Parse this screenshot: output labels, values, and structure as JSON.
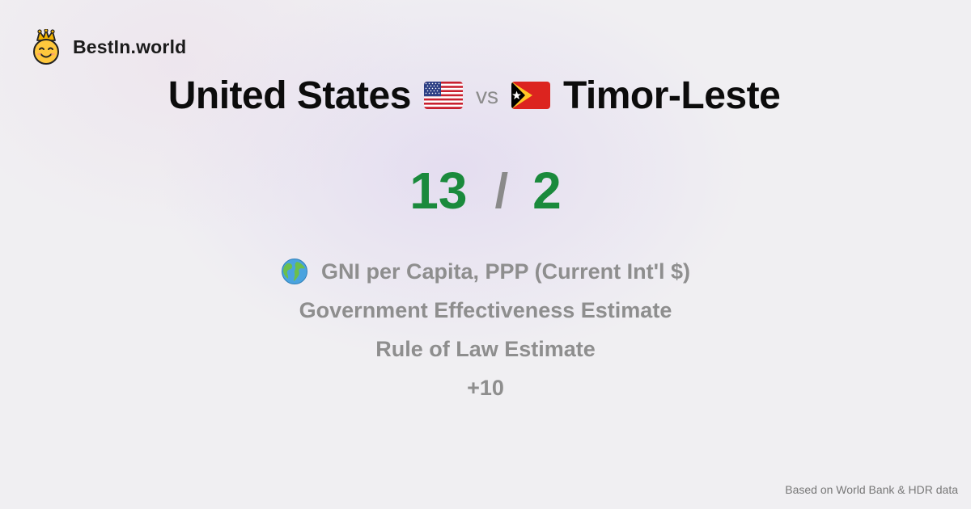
{
  "brand": {
    "name": "BestIn.world",
    "logo_icon": "crowned-smiley-icon"
  },
  "comparison": {
    "left_country": "United States",
    "left_flag_icon": "us-flag-icon",
    "vs_label": "vs",
    "right_country": "Timor-Leste",
    "right_flag_icon": "timor-leste-flag-icon"
  },
  "score": {
    "left": "13",
    "separator": "/",
    "right": "2",
    "color": "#1a8a3c"
  },
  "metrics": {
    "globe_icon": "globe-icon",
    "items": [
      "GNI per Capita, PPP (Current Int'l $)",
      "Government Effectiveness Estimate",
      "Rule of Law Estimate"
    ],
    "more": "+10"
  },
  "footer": {
    "source": "Based on World Bank & HDR data"
  }
}
